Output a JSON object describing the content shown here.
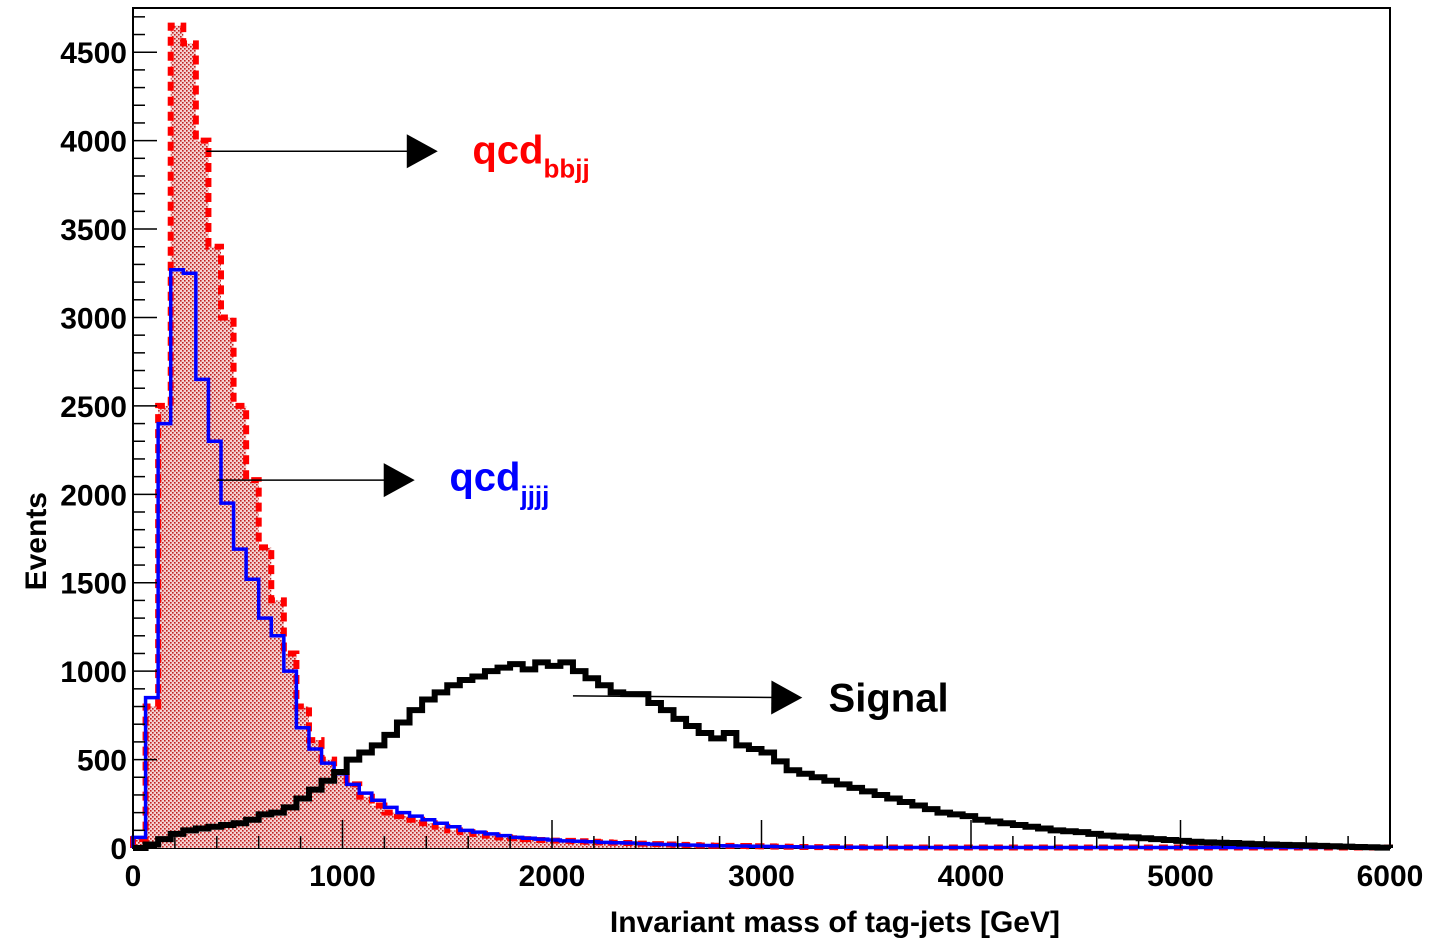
{
  "chart_data": {
    "type": "histogram",
    "xlabel": "Invariant mass of tag-jets [GeV]",
    "ylabel": "Events",
    "xlim": [
      0,
      6000
    ],
    "ylim": [
      0,
      4750
    ],
    "x_ticks": [
      0,
      1000,
      2000,
      3000,
      4000,
      5000,
      6000
    ],
    "y_ticks": [
      0,
      500,
      1000,
      1500,
      2000,
      2500,
      3000,
      3500,
      4000,
      4500
    ],
    "grid": false,
    "bin_width": 60,
    "series": [
      {
        "key": "bbjj",
        "label_main": "qcd",
        "label_sub": "bbjj",
        "style": "dashed-filled",
        "color": "#ff0000",
        "fill": "#e8a0a0",
        "values": [
          50,
          800,
          2500,
          4650,
          4550,
          4000,
          3400,
          3000,
          2500,
          2080,
          1700,
          1400,
          1100,
          800,
          610,
          500,
          430,
          360,
          290,
          240,
          200,
          180,
          160,
          140,
          120,
          100,
          90,
          80,
          70,
          60,
          55,
          50,
          45,
          42,
          40,
          38,
          35,
          32,
          30,
          28,
          25,
          22,
          20,
          18,
          16,
          14,
          13,
          12,
          11,
          10,
          9,
          8,
          7,
          6,
          5,
          5,
          4,
          4,
          3,
          3,
          3,
          3,
          3,
          3,
          3,
          3,
          3,
          3,
          3,
          3,
          3,
          3,
          3,
          3,
          3,
          3,
          3,
          3,
          3,
          3,
          3,
          3,
          3,
          3,
          3,
          3,
          3,
          3,
          3,
          3,
          3,
          3,
          3,
          3,
          3,
          3,
          3,
          3,
          3,
          3
        ]
      },
      {
        "key": "jjjj",
        "label_main": "qcd",
        "label_sub": "jjjj",
        "style": "solid",
        "color": "#0000ff",
        "values": [
          60,
          850,
          2400,
          3270,
          3250,
          2650,
          2300,
          1950,
          1690,
          1520,
          1300,
          1200,
          1000,
          680,
          560,
          480,
          420,
          360,
          310,
          270,
          230,
          200,
          180,
          160,
          140,
          120,
          100,
          90,
          80,
          70,
          60,
          55,
          50,
          45,
          40,
          38,
          35,
          32,
          30,
          28,
          25,
          22,
          20,
          18,
          16,
          14,
          13,
          12,
          11,
          10,
          9,
          8,
          7,
          6,
          5,
          5,
          4,
          4,
          3,
          3,
          3,
          3,
          3,
          3,
          3,
          3,
          3,
          3,
          3,
          3,
          3,
          3,
          3,
          3,
          3,
          3,
          3,
          3,
          3,
          3,
          3,
          3,
          3,
          3,
          3,
          3,
          3,
          3,
          3,
          3,
          3,
          3,
          3,
          3,
          3,
          3,
          3,
          3,
          3,
          3
        ]
      },
      {
        "key": "signal",
        "label_main": "Signal",
        "label_sub": "",
        "style": "solid-thick",
        "color": "#000000",
        "values": [
          0,
          20,
          50,
          80,
          100,
          110,
          120,
          130,
          140,
          160,
          190,
          200,
          230,
          280,
          330,
          380,
          430,
          500,
          540,
          580,
          640,
          710,
          780,
          840,
          880,
          920,
          950,
          970,
          1000,
          1020,
          1040,
          1010,
          1050,
          1030,
          1050,
          1000,
          960,
          920,
          880,
          870,
          870,
          820,
          780,
          730,
          690,
          650,
          620,
          650,
          580,
          560,
          540,
          490,
          440,
          420,
          400,
          380,
          360,
          340,
          320,
          300,
          280,
          260,
          240,
          220,
          200,
          190,
          180,
          160,
          150,
          140,
          130,
          120,
          110,
          100,
          95,
          90,
          80,
          70,
          65,
          60,
          55,
          50,
          45,
          40,
          35,
          32,
          30,
          28,
          25,
          22,
          20,
          18,
          16,
          14,
          12,
          10,
          8,
          6,
          4,
          2
        ]
      }
    ],
    "annotations": [
      {
        "series": "bbjj",
        "text_main": "qcd",
        "text_sub": "bbjj",
        "color": "#ff0000",
        "arrow_from": [
          350,
          3940
        ],
        "arrow_to": [
          1450,
          3940
        ],
        "text_at": [
          1620,
          3950
        ]
      },
      {
        "series": "jjjj",
        "text_main": "qcd",
        "text_sub": "jjjj",
        "color": "#0000ff",
        "arrow_from": [
          400,
          2080
        ],
        "arrow_to": [
          1340,
          2080
        ],
        "text_at": [
          1510,
          2100
        ]
      },
      {
        "series": "signal",
        "text_main": "Signal",
        "text_sub": "",
        "color": "#000000",
        "arrow_from": [
          2100,
          860
        ],
        "arrow_to": [
          3190,
          850
        ],
        "text_at": [
          3320,
          850
        ]
      }
    ]
  }
}
